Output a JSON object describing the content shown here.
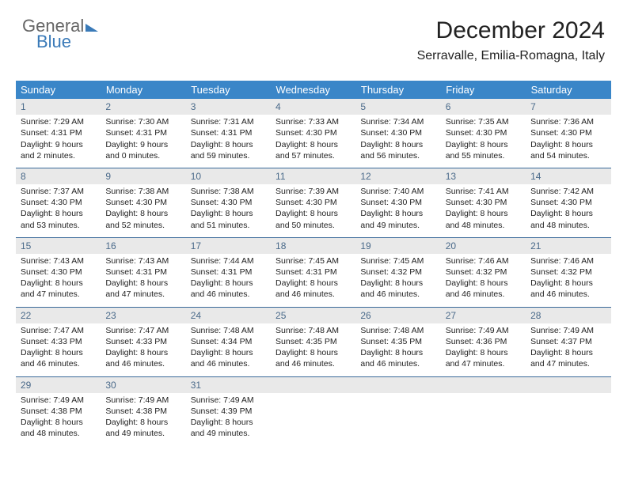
{
  "brand": {
    "part1": "General",
    "part2": "Blue"
  },
  "title": "December 2024",
  "subtitle": "Serravalle, Emilia-Romagna, Italy",
  "colors": {
    "header_bg": "#3a86c8",
    "header_text": "#ffffff",
    "daynum_bg": "#e9e9e9",
    "daynum_text": "#4a6a8a",
    "border": "#3a6a9a",
    "body_text": "#222222",
    "brand_gray": "#666666",
    "brand_blue": "#3a7ab8"
  },
  "weekdays": [
    "Sunday",
    "Monday",
    "Tuesday",
    "Wednesday",
    "Thursday",
    "Friday",
    "Saturday"
  ],
  "weeks": [
    [
      {
        "n": "1",
        "sr": "7:29 AM",
        "ss": "4:31 PM",
        "dl": "9 hours and 2 minutes."
      },
      {
        "n": "2",
        "sr": "7:30 AM",
        "ss": "4:31 PM",
        "dl": "9 hours and 0 minutes."
      },
      {
        "n": "3",
        "sr": "7:31 AM",
        "ss": "4:31 PM",
        "dl": "8 hours and 59 minutes."
      },
      {
        "n": "4",
        "sr": "7:33 AM",
        "ss": "4:30 PM",
        "dl": "8 hours and 57 minutes."
      },
      {
        "n": "5",
        "sr": "7:34 AM",
        "ss": "4:30 PM",
        "dl": "8 hours and 56 minutes."
      },
      {
        "n": "6",
        "sr": "7:35 AM",
        "ss": "4:30 PM",
        "dl": "8 hours and 55 minutes."
      },
      {
        "n": "7",
        "sr": "7:36 AM",
        "ss": "4:30 PM",
        "dl": "8 hours and 54 minutes."
      }
    ],
    [
      {
        "n": "8",
        "sr": "7:37 AM",
        "ss": "4:30 PM",
        "dl": "8 hours and 53 minutes."
      },
      {
        "n": "9",
        "sr": "7:38 AM",
        "ss": "4:30 PM",
        "dl": "8 hours and 52 minutes."
      },
      {
        "n": "10",
        "sr": "7:38 AM",
        "ss": "4:30 PM",
        "dl": "8 hours and 51 minutes."
      },
      {
        "n": "11",
        "sr": "7:39 AM",
        "ss": "4:30 PM",
        "dl": "8 hours and 50 minutes."
      },
      {
        "n": "12",
        "sr": "7:40 AM",
        "ss": "4:30 PM",
        "dl": "8 hours and 49 minutes."
      },
      {
        "n": "13",
        "sr": "7:41 AM",
        "ss": "4:30 PM",
        "dl": "8 hours and 48 minutes."
      },
      {
        "n": "14",
        "sr": "7:42 AM",
        "ss": "4:30 PM",
        "dl": "8 hours and 48 minutes."
      }
    ],
    [
      {
        "n": "15",
        "sr": "7:43 AM",
        "ss": "4:30 PM",
        "dl": "8 hours and 47 minutes."
      },
      {
        "n": "16",
        "sr": "7:43 AM",
        "ss": "4:31 PM",
        "dl": "8 hours and 47 minutes."
      },
      {
        "n": "17",
        "sr": "7:44 AM",
        "ss": "4:31 PM",
        "dl": "8 hours and 46 minutes."
      },
      {
        "n": "18",
        "sr": "7:45 AM",
        "ss": "4:31 PM",
        "dl": "8 hours and 46 minutes."
      },
      {
        "n": "19",
        "sr": "7:45 AM",
        "ss": "4:32 PM",
        "dl": "8 hours and 46 minutes."
      },
      {
        "n": "20",
        "sr": "7:46 AM",
        "ss": "4:32 PM",
        "dl": "8 hours and 46 minutes."
      },
      {
        "n": "21",
        "sr": "7:46 AM",
        "ss": "4:32 PM",
        "dl": "8 hours and 46 minutes."
      }
    ],
    [
      {
        "n": "22",
        "sr": "7:47 AM",
        "ss": "4:33 PM",
        "dl": "8 hours and 46 minutes."
      },
      {
        "n": "23",
        "sr": "7:47 AM",
        "ss": "4:33 PM",
        "dl": "8 hours and 46 minutes."
      },
      {
        "n": "24",
        "sr": "7:48 AM",
        "ss": "4:34 PM",
        "dl": "8 hours and 46 minutes."
      },
      {
        "n": "25",
        "sr": "7:48 AM",
        "ss": "4:35 PM",
        "dl": "8 hours and 46 minutes."
      },
      {
        "n": "26",
        "sr": "7:48 AM",
        "ss": "4:35 PM",
        "dl": "8 hours and 46 minutes."
      },
      {
        "n": "27",
        "sr": "7:49 AM",
        "ss": "4:36 PM",
        "dl": "8 hours and 47 minutes."
      },
      {
        "n": "28",
        "sr": "7:49 AM",
        "ss": "4:37 PM",
        "dl": "8 hours and 47 minutes."
      }
    ],
    [
      {
        "n": "29",
        "sr": "7:49 AM",
        "ss": "4:38 PM",
        "dl": "8 hours and 48 minutes."
      },
      {
        "n": "30",
        "sr": "7:49 AM",
        "ss": "4:38 PM",
        "dl": "8 hours and 49 minutes."
      },
      {
        "n": "31",
        "sr": "7:49 AM",
        "ss": "4:39 PM",
        "dl": "8 hours and 49 minutes."
      },
      {
        "n": "",
        "empty": true
      },
      {
        "n": "",
        "empty": true
      },
      {
        "n": "",
        "empty": true
      },
      {
        "n": "",
        "empty": true
      }
    ]
  ],
  "labels": {
    "sunrise": "Sunrise: ",
    "sunset": "Sunset: ",
    "daylight": "Daylight: "
  }
}
